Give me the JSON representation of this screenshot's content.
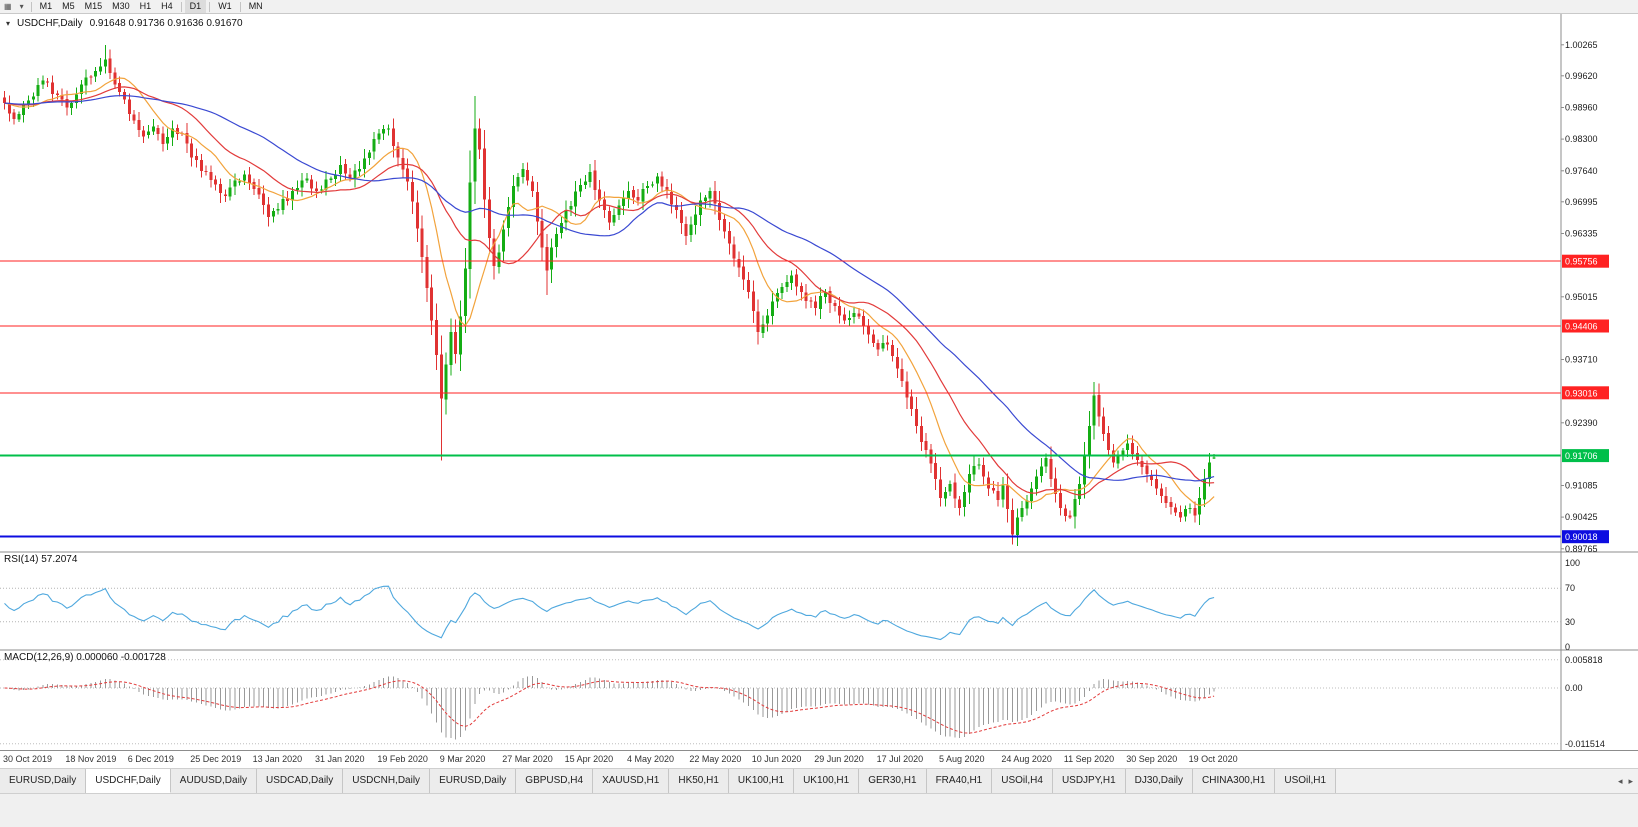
{
  "toolbar": {
    "timeframes": [
      "M1",
      "M5",
      "M15",
      "M30",
      "H1",
      "H4",
      "D1",
      "W1",
      "MN"
    ],
    "active": "D1"
  },
  "icons": {
    "chart_type": "▦",
    "dropdown": "▾",
    "chart_marker": "▾",
    "tab_scroll_left": "◂",
    "tab_scroll_right": "▸"
  },
  "chart": {
    "title_symbol": "USDCHF,Daily",
    "title_ohlc": "0.91648 0.91736 0.91636 0.91670"
  },
  "colors": {
    "bull": "#14ad14",
    "bear": "#e03232",
    "panel_border": "#8c8c8c",
    "axis_text": "#1a1a1a"
  },
  "chart_data": {
    "type": "candlestick",
    "symbol": "USDCHF",
    "timeframe": "Daily",
    "seed": 11,
    "bars": 253,
    "current": {
      "open": 0.91648,
      "high": 0.91736,
      "low": 0.91636,
      "close": 0.9167
    },
    "close_anchors": [
      [
        0,
        0.9905
      ],
      [
        2,
        0.9872
      ],
      [
        4,
        0.99
      ],
      [
        8,
        0.9952
      ],
      [
        11,
        0.9922
      ],
      [
        13,
        0.9896
      ],
      [
        16,
        0.9944
      ],
      [
        19,
        0.9972
      ],
      [
        21,
        0.9996
      ],
      [
        23,
        0.9944
      ],
      [
        25,
        0.9912
      ],
      [
        26,
        0.9882
      ],
      [
        29,
        0.9836
      ],
      [
        31,
        0.9856
      ],
      [
        33,
        0.982
      ],
      [
        35,
        0.9852
      ],
      [
        37,
        0.9842
      ],
      [
        39,
        0.9792
      ],
      [
        42,
        0.9762
      ],
      [
        44,
        0.9736
      ],
      [
        46,
        0.9712
      ],
      [
        48,
        0.9744
      ],
      [
        50,
        0.9756
      ],
      [
        52,
        0.9726
      ],
      [
        55,
        0.9668
      ],
      [
        57,
        0.9684
      ],
      [
        60,
        0.9722
      ],
      [
        63,
        0.9748
      ],
      [
        65,
        0.9722
      ],
      [
        68,
        0.9748
      ],
      [
        70,
        0.9776
      ],
      [
        72,
        0.9748
      ],
      [
        74,
        0.9768
      ],
      [
        76,
        0.9802
      ],
      [
        78,
        0.9842
      ],
      [
        80,
        0.9852
      ],
      [
        82,
        0.9792
      ],
      [
        84,
        0.9742
      ],
      [
        85,
        0.97
      ],
      [
        86,
        0.9644
      ],
      [
        87,
        0.9584
      ],
      [
        88,
        0.952
      ],
      [
        89,
        0.9452
      ],
      [
        90,
        0.938
      ],
      [
        91,
        0.929
      ],
      [
        92,
        0.936
      ],
      [
        93,
        0.9428
      ],
      [
        94,
        0.9382
      ],
      [
        95,
        0.946
      ],
      [
        96,
        0.956
      ],
      [
        97,
        0.974
      ],
      [
        98,
        0.9852
      ],
      [
        99,
        0.9808
      ],
      [
        100,
        0.9704
      ],
      [
        101,
        0.9624
      ],
      [
        102,
        0.9566
      ],
      [
        103,
        0.9594
      ],
      [
        104,
        0.9642
      ],
      [
        106,
        0.9732
      ],
      [
        108,
        0.9768
      ],
      [
        110,
        0.9722
      ],
      [
        112,
        0.9604
      ],
      [
        113,
        0.9556
      ],
      [
        114,
        0.9604
      ],
      [
        117,
        0.9682
      ],
      [
        120,
        0.9734
      ],
      [
        122,
        0.9762
      ],
      [
        124,
        0.9702
      ],
      [
        126,
        0.9656
      ],
      [
        128,
        0.9692
      ],
      [
        130,
        0.9722
      ],
      [
        132,
        0.9702
      ],
      [
        134,
        0.9732
      ],
      [
        136,
        0.9752
      ],
      [
        138,
        0.9722
      ],
      [
        140,
        0.9682
      ],
      [
        142,
        0.9628
      ],
      [
        143,
        0.9652
      ],
      [
        145,
        0.9702
      ],
      [
        147,
        0.9722
      ],
      [
        149,
        0.9662
      ],
      [
        151,
        0.9612
      ],
      [
        153,
        0.9562
      ],
      [
        155,
        0.9512
      ],
      [
        156,
        0.9472
      ],
      [
        157,
        0.9428
      ],
      [
        158,
        0.9444
      ],
      [
        160,
        0.9492
      ],
      [
        162,
        0.9522
      ],
      [
        164,
        0.9546
      ],
      [
        166,
        0.9512
      ],
      [
        169,
        0.9478
      ],
      [
        171,
        0.9512
      ],
      [
        173,
        0.9482
      ],
      [
        175,
        0.9452
      ],
      [
        177,
        0.9468
      ],
      [
        179,
        0.9442
      ],
      [
        182,
        0.9392
      ],
      [
        184,
        0.9402
      ],
      [
        186,
        0.9352
      ],
      [
        188,
        0.9292
      ],
      [
        190,
        0.9232
      ],
      [
        192,
        0.9182
      ],
      [
        194,
        0.9122
      ],
      [
        195,
        0.9082
      ],
      [
        197,
        0.9112
      ],
      [
        199,
        0.9062
      ],
      [
        201,
        0.9132
      ],
      [
        203,
        0.9152
      ],
      [
        205,
        0.9102
      ],
      [
        207,
        0.9078
      ],
      [
        208,
        0.9108
      ],
      [
        210,
        0.9006
      ],
      [
        212,
        0.9062
      ],
      [
        214,
        0.9102
      ],
      [
        216,
        0.9148
      ],
      [
        217,
        0.9166
      ],
      [
        218,
        0.9122
      ],
      [
        220,
        0.9062
      ],
      [
        222,
        0.9042
      ],
      [
        224,
        0.9112
      ],
      [
        225,
        0.9172
      ],
      [
        226,
        0.9232
      ],
      [
        227,
        0.9296
      ],
      [
        228,
        0.9252
      ],
      [
        229,
        0.9216
      ],
      [
        230,
        0.9182
      ],
      [
        231,
        0.9156
      ],
      [
        232,
        0.9172
      ],
      [
        234,
        0.9196
      ],
      [
        236,
        0.9162
      ],
      [
        238,
        0.9132
      ],
      [
        240,
        0.9102
      ],
      [
        242,
        0.9072
      ],
      [
        244,
        0.9052
      ],
      [
        245,
        0.9042
      ],
      [
        247,
        0.9062
      ],
      [
        248,
        0.9046
      ],
      [
        249,
        0.9082
      ],
      [
        250,
        0.9122
      ],
      [
        251,
        0.9156
      ],
      [
        252,
        0.9167
      ]
    ],
    "extremes": [
      {
        "i": 21,
        "high": 1.00265
      },
      {
        "i": 91,
        "low": 0.916
      },
      {
        "i": 98,
        "high": 0.992
      },
      {
        "i": 113,
        "low": 0.9505
      },
      {
        "i": 157,
        "low": 0.941
      },
      {
        "i": 210,
        "low": 0.8995
      },
      {
        "i": 227,
        "high": 0.9316
      },
      {
        "i": 245,
        "low": 0.9032
      }
    ],
    "moving_averages": [
      {
        "period": 10,
        "color": "#f2a33c"
      },
      {
        "period": 21,
        "color": "#e23b3b"
      },
      {
        "period": 40,
        "color": "#3a49d2"
      }
    ],
    "hlines": [
      {
        "price": 0.95756,
        "label": "0.95756",
        "color": "#ff2222",
        "width": 1
      },
      {
        "price": 0.94406,
        "label": "0.94406",
        "color": "#ff2222",
        "width": 1
      },
      {
        "price": 0.93016,
        "label": "0.93016",
        "color": "#ff2222",
        "width": 1
      },
      {
        "price": 0.91706,
        "label": "0.91706",
        "color": "#00bf4a",
        "width": 2
      },
      {
        "price": 0.90018,
        "label": "0.90018",
        "color": "#0d0de0",
        "width": 2
      }
    ],
    "y_axis_ticks": [
      "1.00265",
      "0.99620",
      "0.98960",
      "0.98300",
      "0.97640",
      "0.96995",
      "0.96335",
      "0.95015",
      "0.93710",
      "0.92390",
      "0.91085",
      "0.90425",
      "0.89765"
    ],
    "x_axis_labels": [
      {
        "i": 0,
        "text": "30 Oct 2019"
      },
      {
        "i": 13,
        "text": "18 Nov 2019"
      },
      {
        "i": 26,
        "text": "6 Dec 2019"
      },
      {
        "i": 39,
        "text": "25 Dec 2019"
      },
      {
        "i": 52,
        "text": "13 Jan 2020"
      },
      {
        "i": 65,
        "text": "31 Jan 2020"
      },
      {
        "i": 78,
        "text": "19 Feb 2020"
      },
      {
        "i": 91,
        "text": "9 Mar 2020"
      },
      {
        "i": 104,
        "text": "27 Mar 2020"
      },
      {
        "i": 117,
        "text": "15 Apr 2020"
      },
      {
        "i": 130,
        "text": "4 May 2020"
      },
      {
        "i": 143,
        "text": "22 May 2020"
      },
      {
        "i": 156,
        "text": "10 Jun 2020"
      },
      {
        "i": 169,
        "text": "29 Jun 2020"
      },
      {
        "i": 182,
        "text": "17 Jul 2020"
      },
      {
        "i": 195,
        "text": "5 Aug 2020"
      },
      {
        "i": 208,
        "text": "24 Aug 2020"
      },
      {
        "i": 221,
        "text": "11 Sep 2020"
      },
      {
        "i": 234,
        "text": "30 Sep 2020"
      },
      {
        "i": 247,
        "text": "19 Oct 2020"
      }
    ],
    "rsi": {
      "label": "RSI(14) 57.2074",
      "period": 14,
      "value": 57.2074,
      "levels": [
        100,
        70,
        30,
        0
      ],
      "dotted_levels": [
        70,
        30
      ],
      "color": "#4fa8de"
    },
    "macd": {
      "label": "MACD(12,26,9) 0.000060 -0.001728",
      "fast": 12,
      "slow": 26,
      "signal_period": 9,
      "value": 6e-05,
      "signal_value": -0.001728,
      "axis": [
        {
          "text": "0.005818",
          "value": 0.005818
        },
        {
          "text": "0.00",
          "value": 0
        },
        {
          "text": "-0.011514",
          "value": -0.011514
        }
      ],
      "histogram_color": "#9a9a9a",
      "signal_color": "#e23b3b"
    }
  },
  "tabs": {
    "items": [
      "EURUSD,Daily",
      "USDCHF,Daily",
      "AUDUSD,Daily",
      "USDCAD,Daily",
      "USDCNH,Daily",
      "EURUSD,Daily",
      "GBPUSD,H4",
      "XAUUSD,H1",
      "HK50,H1",
      "UK100,H1",
      "UK100,H1",
      "GER30,H1",
      "FRA40,H1",
      "USOil,H4",
      "USDJPY,H1",
      "DJ30,Daily",
      "CHINA300,H1",
      "USOil,H1"
    ],
    "active_index": 1
  }
}
